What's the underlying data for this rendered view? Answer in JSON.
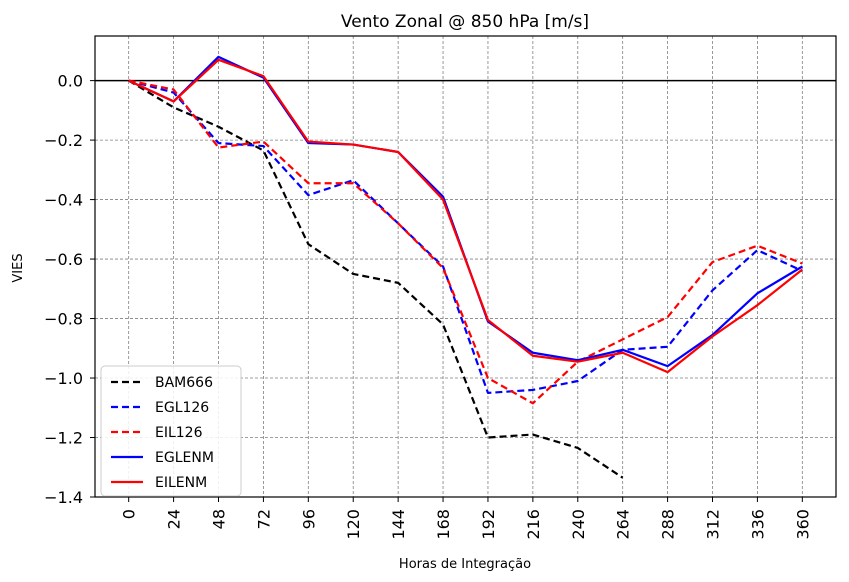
{
  "chart_data": {
    "type": "line",
    "title": "Vento Zonal @ 850 hPa [m/s]",
    "xlabel": "Horas de Integração",
    "ylabel": "VIES",
    "x": [
      0,
      24,
      48,
      72,
      96,
      120,
      144,
      168,
      192,
      216,
      240,
      264,
      288,
      312,
      336,
      360
    ],
    "xlim": [
      -18,
      378
    ],
    "ylim": [
      -1.4,
      0.15
    ],
    "yticks": [
      0.0,
      -0.2,
      -0.4,
      -0.6,
      -0.8,
      -1.0,
      -1.2,
      -1.4
    ],
    "ytick_labels": [
      "0.0",
      "−0.2",
      "−0.4",
      "−0.6",
      "−0.8",
      "−1.0",
      "−1.2",
      "−1.4"
    ],
    "xtick_labels": [
      "0",
      "24",
      "48",
      "72",
      "96",
      "120",
      "144",
      "168",
      "192",
      "216",
      "240",
      "264",
      "288",
      "312",
      "336",
      "360"
    ],
    "grid": true,
    "zero_line": true,
    "legend_position": "lower-left",
    "series": [
      {
        "name": "BAM666",
        "color": "#000000",
        "style": "dashed",
        "values": [
          0.0,
          -0.09,
          -0.155,
          -0.235,
          -0.55,
          -0.65,
          -0.68,
          -0.82,
          -1.2,
          -1.19,
          -1.235,
          -1.335,
          null,
          null,
          null,
          null
        ]
      },
      {
        "name": "EGL126",
        "color": "#0000ff",
        "style": "dashed",
        "values": [
          0.0,
          -0.04,
          -0.21,
          -0.22,
          -0.385,
          -0.335,
          -0.48,
          -0.625,
          -1.05,
          -1.04,
          -1.01,
          -0.905,
          -0.895,
          -0.705,
          -0.57,
          -0.64
        ]
      },
      {
        "name": "EIL126",
        "color": "#ff0000",
        "style": "dashed",
        "values": [
          0.0,
          -0.03,
          -0.225,
          -0.205,
          -0.345,
          -0.345,
          -0.48,
          -0.63,
          -1.0,
          -1.085,
          -0.945,
          -0.87,
          -0.795,
          -0.61,
          -0.555,
          -0.615
        ]
      },
      {
        "name": "EGLENM",
        "color": "#0000ff",
        "style": "solid",
        "values": [
          0.0,
          -0.07,
          0.08,
          0.01,
          -0.21,
          -0.215,
          -0.24,
          -0.39,
          -0.81,
          -0.915,
          -0.94,
          -0.905,
          -0.96,
          -0.855,
          -0.715,
          -0.625
        ]
      },
      {
        "name": "EILENM",
        "color": "#ff0000",
        "style": "solid",
        "values": [
          0.0,
          -0.07,
          0.07,
          0.015,
          -0.205,
          -0.215,
          -0.24,
          -0.4,
          -0.805,
          -0.925,
          -0.945,
          -0.915,
          -0.98,
          -0.86,
          -0.755,
          -0.635
        ]
      }
    ]
  }
}
